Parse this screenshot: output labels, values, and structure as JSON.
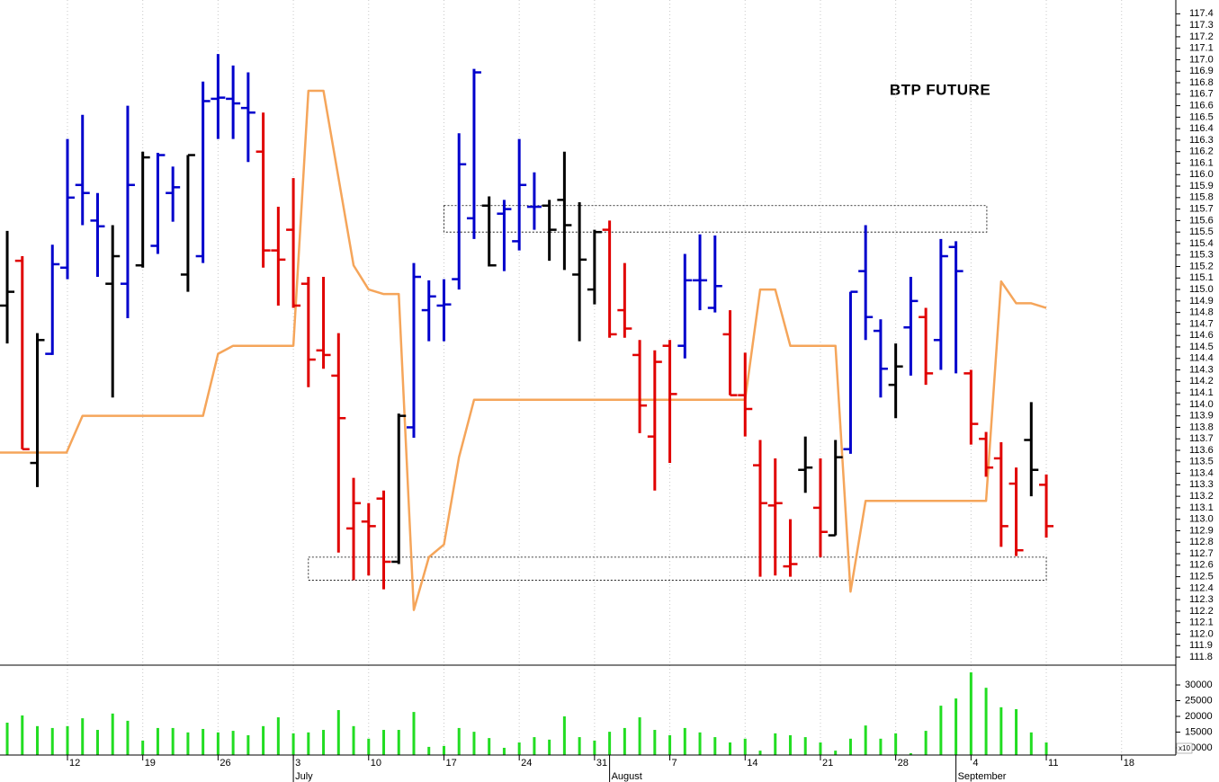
{
  "chart_data": [
    {
      "type": "ohlc",
      "title": "BTP FUTURE",
      "x": [
        0,
        1,
        2,
        3,
        4,
        5,
        6,
        7,
        8,
        9,
        10,
        11,
        12,
        13,
        14,
        15,
        16,
        17,
        18,
        19,
        20,
        21,
        22,
        23,
        24,
        25,
        26,
        27,
        28,
        29,
        30,
        31,
        32,
        33,
        34,
        35,
        36,
        37,
        38,
        39,
        40,
        41,
        42,
        43,
        44,
        45,
        46,
        47,
        48,
        49,
        50,
        51,
        52,
        53,
        54,
        55,
        56,
        57,
        58,
        59,
        60,
        61,
        62,
        63,
        64,
        65,
        66,
        67,
        68,
        69
      ],
      "open": [
        114.86,
        115.25,
        113.49,
        114.44,
        115.19,
        115.91,
        115.6,
        115.05,
        115.05,
        115.21,
        115.38,
        115.84,
        115.13,
        115.29,
        116.66,
        116.66,
        116.58,
        116.2,
        115.34,
        115.52,
        115.05,
        114.47,
        114.25,
        112.92,
        112.98,
        113.18,
        112.63,
        113.8,
        114.82,
        114.86,
        115.09,
        115.62,
        115.73,
        115.66,
        115.42,
        115.72,
        115.73,
        115.78,
        115.13,
        115.0,
        115.52,
        114.82,
        114.43,
        113.72,
        114.51,
        114.51,
        115.08,
        114.84,
        114.61,
        114.08,
        113.47,
        113.12,
        112.59,
        113.43,
        113.1,
        112.86,
        113.61,
        115.16,
        114.64,
        114.17,
        114.67,
        114.76,
        114.56,
        115.37,
        114.27,
        113.7,
        113.53,
        113.31,
        113.69,
        113.3
      ],
      "high": [
        115.51,
        115.29,
        114.62,
        115.39,
        116.31,
        116.52,
        115.84,
        115.56,
        116.6,
        116.2,
        116.19,
        116.07,
        116.17,
        116.81,
        117.05,
        116.95,
        116.89,
        116.54,
        115.72,
        115.97,
        115.11,
        115.11,
        114.62,
        113.36,
        113.14,
        113.25,
        113.92,
        115.23,
        115.08,
        115.09,
        116.36,
        116.92,
        115.81,
        115.78,
        116.31,
        116.02,
        115.78,
        116.2,
        115.76,
        115.52,
        115.6,
        115.23,
        114.56,
        114.47,
        114.56,
        115.31,
        115.48,
        115.47,
        114.82,
        114.45,
        113.69,
        113.53,
        113.0,
        113.72,
        113.53,
        113.69,
        114.98,
        115.56,
        114.74,
        114.53,
        115.11,
        114.84,
        115.44,
        115.42,
        114.3,
        113.76,
        113.67,
        113.45,
        114.02,
        113.39
      ],
      "low": [
        114.53,
        113.61,
        113.28,
        114.43,
        115.09,
        115.56,
        115.11,
        114.06,
        114.75,
        115.19,
        115.31,
        115.59,
        114.98,
        115.23,
        116.31,
        116.31,
        116.11,
        115.19,
        114.86,
        114.84,
        114.15,
        114.31,
        112.71,
        112.47,
        112.51,
        112.39,
        112.61,
        113.71,
        114.55,
        114.55,
        115.0,
        115.44,
        115.2,
        115.16,
        115.34,
        115.52,
        115.25,
        115.17,
        114.55,
        114.87,
        114.58,
        114.58,
        113.75,
        113.25,
        113.49,
        114.4,
        114.82,
        114.8,
        114.08,
        113.72,
        112.5,
        112.51,
        112.5,
        113.23,
        112.67,
        112.86,
        113.57,
        114.56,
        114.06,
        113.88,
        114.25,
        114.17,
        114.3,
        114.27,
        113.65,
        113.37,
        112.76,
        112.68,
        113.2,
        112.84
      ],
      "close": [
        114.98,
        113.61,
        114.56,
        115.22,
        115.8,
        115.84,
        115.55,
        115.29,
        115.91,
        116.15,
        116.17,
        115.89,
        116.17,
        116.64,
        116.67,
        116.62,
        116.54,
        115.34,
        115.26,
        114.86,
        114.39,
        114.43,
        113.88,
        113.14,
        112.94,
        112.63,
        113.9,
        115.11,
        114.94,
        114.87,
        116.09,
        116.89,
        115.21,
        115.7,
        115.91,
        115.72,
        115.52,
        115.56,
        115.26,
        115.5,
        114.61,
        114.66,
        113.99,
        114.37,
        114.09,
        115.08,
        115.08,
        115.03,
        114.08,
        113.96,
        113.14,
        113.14,
        112.61,
        113.45,
        112.89,
        113.54,
        114.98,
        114.76,
        114.31,
        114.33,
        114.9,
        114.27,
        115.29,
        115.16,
        113.83,
        113.45,
        112.94,
        112.73,
        113.43,
        112.94
      ],
      "colors": [
        "#000000",
        "#e00000",
        "#000000",
        "#0000cc",
        "#0000cc",
        "#0000cc",
        "#0000cc",
        "#000000",
        "#0000cc",
        "#000000",
        "#0000cc",
        "#0000cc",
        "#000000",
        "#0000cc",
        "#0000cc",
        "#0000cc",
        "#0000cc",
        "#e00000",
        "#e00000",
        "#e00000",
        "#e00000",
        "#e00000",
        "#e00000",
        "#e00000",
        "#e00000",
        "#e00000",
        "#000000",
        "#0000cc",
        "#0000cc",
        "#0000cc",
        "#0000cc",
        "#0000cc",
        "#000000",
        "#0000cc",
        "#0000cc",
        "#0000cc",
        "#000000",
        "#000000",
        "#000000",
        "#000000",
        "#e00000",
        "#e00000",
        "#e00000",
        "#e00000",
        "#e00000",
        "#0000cc",
        "#0000cc",
        "#0000cc",
        "#e00000",
        "#e00000",
        "#e00000",
        "#e00000",
        "#e00000",
        "#000000",
        "#e00000",
        "#000000",
        "#0000cc",
        "#0000cc",
        "#0000cc",
        "#000000",
        "#0000cc",
        "#e00000",
        "#0000cc",
        "#0000cc",
        "#e00000",
        "#e00000",
        "#e00000",
        "#e00000",
        "#000000",
        "#e00000"
      ],
      "line": {
        "color": "#f5a55a",
        "x": [
          -0.48,
          3.94,
          5,
          13,
          14,
          15,
          19,
          20,
          21,
          23,
          24,
          25,
          26,
          27,
          28,
          29,
          30,
          31,
          49,
          50,
          51,
          52,
          55,
          56,
          57,
          65,
          66,
          67,
          68,
          69
        ],
        "values": [
          113.58,
          113.58,
          113.9,
          113.9,
          114.44,
          114.51,
          114.51,
          116.73,
          116.73,
          115.21,
          115.0,
          114.96,
          114.96,
          112.21,
          112.67,
          112.78,
          113.54,
          114.04,
          114.04,
          115.0,
          115.0,
          114.51,
          114.51,
          112.37,
          113.16,
          113.16,
          115.07,
          114.88,
          114.88,
          114.84
        ]
      },
      "zones": [
        {
          "x": [
            29,
            65.05
          ],
          "y": [
            115.5,
            115.73
          ]
        },
        {
          "x": [
            20,
            69
          ],
          "y": [
            112.47,
            112.67
          ]
        }
      ],
      "xlim": [
        -0.48,
        77.6
      ],
      "ylim": [
        111.73,
        117.52
      ],
      "yticks": [
        111.8,
        111.9,
        {
          "value": 112,
          "label": "112.0"
        },
        112.1,
        112.2,
        112.3,
        112.4,
        112.5,
        112.6,
        112.7,
        112.8,
        112.9,
        {
          "value": 113,
          "label": "113.0"
        },
        113.1,
        113.2,
        113.3,
        113.4,
        113.5,
        113.6,
        113.7,
        113.8,
        113.9,
        {
          "value": 114,
          "label": "114.0"
        },
        114.1,
        114.2,
        114.3,
        114.4,
        114.5,
        114.6,
        114.7,
        114.8,
        114.9,
        {
          "value": 115,
          "label": "115.0"
        },
        115.1,
        115.2,
        115.3,
        115.4,
        115.5,
        115.6,
        115.7,
        115.8,
        115.9,
        {
          "value": 116,
          "label": "116.0"
        },
        116.1,
        116.2,
        116.3,
        116.4,
        116.5,
        116.6,
        116.7,
        116.8,
        116.9,
        {
          "value": 117,
          "label": "117.0"
        },
        117.1,
        117.2,
        117.3,
        117.4
      ]
    },
    {
      "type": "bar",
      "color": "#22dd22",
      "annotation": "x10",
      "x": [
        0,
        1,
        2,
        3,
        4,
        5,
        6,
        7,
        8,
        9,
        10,
        11,
        12,
        13,
        14,
        15,
        16,
        17,
        18,
        19,
        20,
        21,
        22,
        23,
        24,
        25,
        26,
        27,
        28,
        29,
        30,
        31,
        32,
        33,
        34,
        35,
        36,
        37,
        38,
        39,
        40,
        41,
        42,
        43,
        44,
        45,
        46,
        47,
        48,
        49,
        50,
        51,
        52,
        53,
        54,
        55,
        56,
        57,
        58,
        59,
        60,
        61,
        62,
        63,
        64,
        65,
        66,
        67,
        68,
        69
      ],
      "values": [
        18000,
        20300,
        16900,
        16300,
        16900,
        19400,
        15700,
        20900,
        18600,
        12300,
        16300,
        16300,
        14900,
        16000,
        14900,
        15400,
        14000,
        16900,
        19700,
        14600,
        14900,
        15700,
        22000,
        16900,
        12900,
        15700,
        15700,
        21400,
        10300,
        10600,
        16300,
        15100,
        13100,
        10000,
        11700,
        13400,
        12600,
        20000,
        13400,
        12300,
        15100,
        16300,
        19700,
        15700,
        14000,
        16300,
        14900,
        13400,
        11700,
        12900,
        9100,
        14600,
        14000,
        13400,
        11700,
        9100,
        12900,
        17100,
        12900,
        14600,
        8300,
        15400,
        23400,
        25700,
        34000,
        29100,
        22900,
        22300,
        14900,
        11700
      ],
      "xlim": [
        -0.48,
        77.6
      ],
      "ylim": [
        7700,
        36300
      ],
      "yticks": [
        10000,
        15000,
        20000,
        25000,
        30000
      ],
      "xticks": [
        {
          "value": 4,
          "label": "12"
        },
        {
          "value": 9,
          "label": "19"
        },
        {
          "value": 14,
          "label": "26"
        },
        {
          "value": 19,
          "label": "3"
        },
        {
          "value": 24,
          "label": "10"
        },
        {
          "value": 29,
          "label": "17"
        },
        {
          "value": 34,
          "label": "24"
        },
        {
          "value": 39,
          "label": "31"
        },
        {
          "value": 44,
          "label": "7"
        },
        {
          "value": 49,
          "label": "14"
        },
        {
          "value": 54,
          "label": "21"
        },
        {
          "value": 59,
          "label": "28"
        },
        {
          "value": 64,
          "label": "4"
        },
        {
          "value": 69,
          "label": "11"
        },
        {
          "value": 74,
          "label": "18"
        }
      ],
      "month_labels": [
        {
          "value": 19,
          "label": "July"
        },
        {
          "value": 40,
          "label": "August"
        },
        {
          "value": 63,
          "label": "September"
        }
      ]
    }
  ]
}
